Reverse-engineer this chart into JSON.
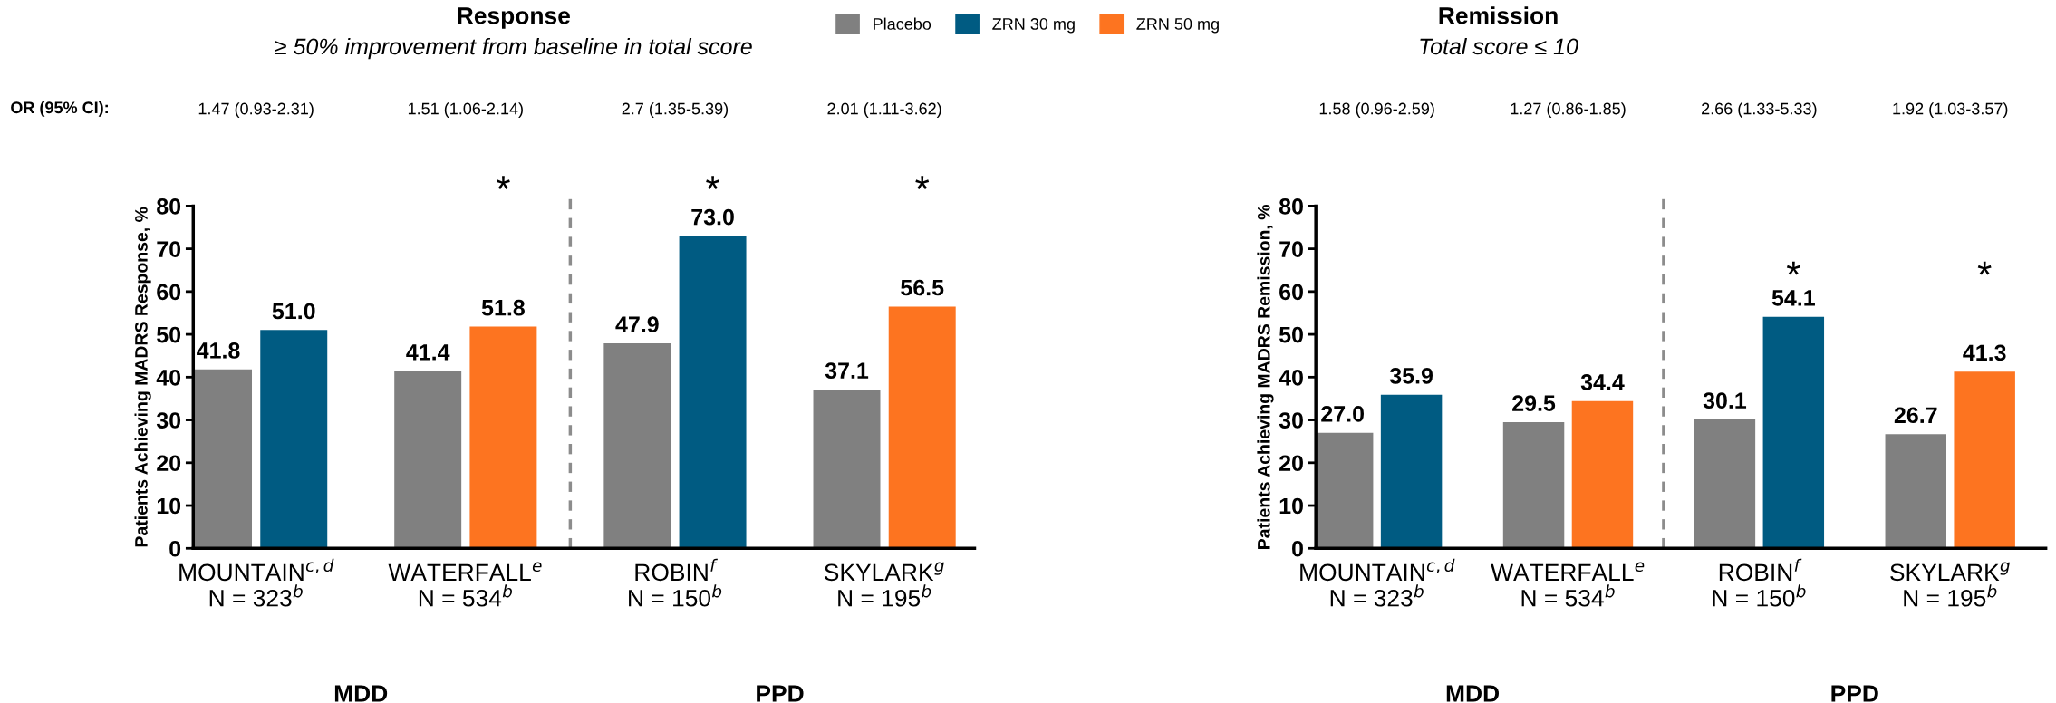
{
  "chart_data": [
    {
      "type": "bar",
      "title": "Response",
      "subtitle": "≥ 50% improvement from baseline in total score",
      "ylabel": "Patients Achieving MADRS Response, %",
      "categories": [
        "MOUNTAIN$^{c,d}$\nN = 323$^{b}$",
        "WATERFALL$^{e}$\nN = 534$^{b}$",
        "ROBIN$^{f}$\nN = 150$^{b}$",
        "SKYLARK$^{g}$\nN = 195$^{b}$"
      ],
      "series": [
        {
          "name": "Placebo",
          "color": "#808080",
          "values": [
            41.8,
            41.4,
            47.9,
            37.1
          ],
          "value_labels": [
            "41.8",
            "41.4",
            "47.9",
            "37.1"
          ]
        },
        {
          "name": "ZRN 30 mg",
          "color": "#005b82",
          "values": [
            51.0,
            null,
            73.0,
            null
          ],
          "value_labels": [
            "51.0",
            null,
            "73.0",
            null
          ]
        },
        {
          "name": "ZRN 50 mg",
          "color": "#fd7420",
          "values": [
            null,
            51.8,
            null,
            56.5
          ],
          "value_labels": [
            null,
            "51.8",
            null,
            "56.5"
          ]
        }
      ],
      "ylim": [
        0,
        80
      ],
      "yticks": [
        0,
        10,
        20,
        30,
        40,
        50,
        60,
        70,
        80
      ],
      "grid": false,
      "legend": "top",
      "annotations": [
        "OR (95% CI):",
        "1.47 (0.93-2.31)",
        "1.51 (1.06-2.14)",
        "2.7 (1.35-5.39)",
        "2.01 (1.11-3.62)",
        "*",
        "*",
        "*",
        "MDD",
        "PPD"
      ]
    },
    {
      "type": "bar",
      "title": "Remission",
      "subtitle": "Total score ≤ 10",
      "ylabel": "Patients Achieving MADRS Remission, %",
      "categories": [
        "MOUNTAIN$^{c,d}$\nN = 323$^{b}$",
        "WATERFALL$^{e}$\nN = 534$^{b}$",
        "ROBIN$^{f}$\nN = 150$^{b}$",
        "SKYLARK$^{g}$\nN = 195$^{b}$"
      ],
      "series": [
        {
          "name": "Placebo",
          "color": "#808080",
          "values": [
            27.0,
            29.5,
            30.1,
            26.7
          ],
          "value_labels": [
            "27.0",
            "29.5",
            "30.1",
            "26.7"
          ]
        },
        {
          "name": "ZRN 30 mg",
          "color": "#005b82",
          "values": [
            35.9,
            null,
            54.1,
            null
          ],
          "value_labels": [
            "35.9",
            null,
            "54.1",
            null
          ]
        },
        {
          "name": "ZRN 50 mg",
          "color": "#fd7420",
          "values": [
            null,
            34.4,
            null,
            41.3
          ],
          "value_labels": [
            null,
            "34.4",
            null,
            "41.3"
          ]
        }
      ],
      "ylim": [
        0,
        80
      ],
      "yticks": [
        0,
        10,
        20,
        30,
        40,
        50,
        60,
        70,
        80
      ],
      "grid": false,
      "annotations": [
        "1.58 (0.96-2.59)",
        "1.27 (0.86-1.85)",
        "2.66 (1.33-5.33)",
        "1.92 (1.03-3.57)",
        "*",
        "*",
        "MDD",
        "PPD"
      ]
    }
  ]
}
